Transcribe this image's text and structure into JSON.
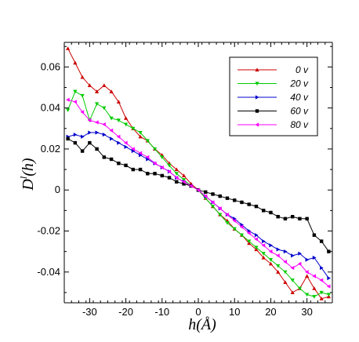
{
  "chart_data": {
    "type": "line",
    "xlabel": "h(Å)",
    "ylabel": "D^l(h)",
    "xlim": [
      -37,
      37
    ],
    "ylim": [
      -0.055,
      0.072
    ],
    "x_ticks": [
      -30,
      -20,
      -10,
      0,
      10,
      20,
      30
    ],
    "x_tick_labels": [
      "-30",
      "-20",
      "-10",
      "0",
      "10",
      "20",
      "30"
    ],
    "y_ticks": [
      -0.04,
      -0.02,
      0,
      0.02,
      0.04,
      0.06
    ],
    "y_tick_labels": [
      "-0.04",
      "-0.02",
      "0",
      "0.02",
      "0.04",
      "0.06"
    ],
    "grid": false,
    "legend_position": "top-right",
    "series": [
      {
        "name": "0 v",
        "color": "#cc0000",
        "marker": "triangle-up",
        "x": [
          -36,
          -34,
          -32,
          -30,
          -28,
          -26,
          -24,
          -22,
          -20,
          -18,
          -16,
          -14,
          -12,
          -10,
          -8,
          -6,
          -4,
          -2,
          0,
          2,
          4,
          6,
          8,
          10,
          12,
          14,
          16,
          18,
          20,
          22,
          24,
          26,
          28,
          30,
          32,
          34,
          36
        ],
        "y": [
          0.069,
          0.062,
          0.055,
          0.051,
          0.048,
          0.051,
          0.048,
          0.043,
          0.035,
          0.03,
          0.026,
          0.024,
          0.02,
          0.017,
          0.013,
          0.01,
          0.007,
          0.003,
          0,
          -0.004,
          -0.008,
          -0.012,
          -0.015,
          -0.019,
          -0.022,
          -0.026,
          -0.029,
          -0.033,
          -0.036,
          -0.04,
          -0.045,
          -0.05,
          -0.048,
          -0.042,
          -0.048,
          -0.053,
          -0.052
        ]
      },
      {
        "name": "20 v",
        "color": "#00cc00",
        "marker": "triangle-down",
        "x": [
          -36,
          -34,
          -32,
          -30,
          -28,
          -26,
          -24,
          -22,
          -20,
          -18,
          -16,
          -14,
          -12,
          -10,
          -8,
          -6,
          -4,
          -2,
          0,
          2,
          4,
          6,
          8,
          10,
          12,
          14,
          16,
          18,
          20,
          22,
          24,
          26,
          28,
          30,
          32,
          34,
          36
        ],
        "y": [
          0.039,
          0.048,
          0.046,
          0.034,
          0.042,
          0.04,
          0.035,
          0.034,
          0.032,
          0.03,
          0.028,
          0.024,
          0.02,
          0.016,
          0.012,
          0.008,
          0.005,
          0.002,
          0,
          -0.004,
          -0.008,
          -0.012,
          -0.016,
          -0.019,
          -0.022,
          -0.025,
          -0.028,
          -0.031,
          -0.034,
          -0.037,
          -0.04,
          -0.044,
          -0.048,
          -0.051,
          -0.052,
          -0.05,
          -0.051
        ]
      },
      {
        "name": "40 v",
        "color": "#0000cc",
        "marker": "triangle-right",
        "x": [
          -36,
          -34,
          -32,
          -30,
          -28,
          -26,
          -24,
          -22,
          -20,
          -18,
          -16,
          -14,
          -12,
          -10,
          -8,
          -6,
          -4,
          -2,
          0,
          2,
          4,
          6,
          8,
          10,
          12,
          14,
          16,
          18,
          20,
          22,
          24,
          26,
          28,
          30,
          32,
          34,
          36
        ],
        "y": [
          0.026,
          0.027,
          0.026,
          0.028,
          0.028,
          0.027,
          0.025,
          0.023,
          0.021,
          0.019,
          0.017,
          0.015,
          0.013,
          0.011,
          0.009,
          0.006,
          0.004,
          0.002,
          0,
          -0.003,
          -0.006,
          -0.009,
          -0.012,
          -0.014,
          -0.017,
          -0.02,
          -0.022,
          -0.025,
          -0.027,
          -0.029,
          -0.03,
          -0.032,
          -0.031,
          -0.034,
          -0.033,
          -0.038,
          -0.043
        ]
      },
      {
        "name": "60 v",
        "color": "#000000",
        "marker": "square",
        "x": [
          -36,
          -34,
          -32,
          -30,
          -28,
          -26,
          -24,
          -22,
          -20,
          -18,
          -16,
          -14,
          -12,
          -10,
          -8,
          -6,
          -4,
          -2,
          0,
          2,
          4,
          6,
          8,
          10,
          12,
          14,
          16,
          18,
          20,
          22,
          24,
          26,
          28,
          30,
          32,
          34,
          36
        ],
        "y": [
          0.025,
          0.023,
          0.019,
          0.023,
          0.02,
          0.016,
          0.015,
          0.013,
          0.012,
          0.01,
          0.01,
          0.008,
          0.008,
          0.007,
          0.006,
          0.004,
          0.003,
          0.002,
          0,
          -0.001,
          -0.002,
          -0.003,
          -0.004,
          -0.005,
          -0.006,
          -0.007,
          -0.008,
          -0.01,
          -0.011,
          -0.013,
          -0.014,
          -0.013,
          -0.014,
          -0.014,
          -0.022,
          -0.025,
          -0.03
        ]
      },
      {
        "name": "80 v",
        "color": "#ff00ff",
        "marker": "triangle-left",
        "x": [
          -36,
          -34,
          -32,
          -30,
          -28,
          -26,
          -24,
          -22,
          -20,
          -18,
          -16,
          -14,
          -12,
          -10,
          -8,
          -6,
          -4,
          -2,
          0,
          2,
          4,
          6,
          8,
          10,
          12,
          14,
          16,
          18,
          20,
          22,
          24,
          26,
          28,
          30,
          32,
          34,
          36
        ],
        "y": [
          0.044,
          0.043,
          0.038,
          0.034,
          0.033,
          0.032,
          0.029,
          0.026,
          0.023,
          0.02,
          0.018,
          0.016,
          0.013,
          0.011,
          0.009,
          0.006,
          0.004,
          0.002,
          0,
          -0.003,
          -0.006,
          -0.009,
          -0.012,
          -0.015,
          -0.018,
          -0.021,
          -0.024,
          -0.027,
          -0.03,
          -0.032,
          -0.035,
          -0.038,
          -0.036,
          -0.04,
          -0.042,
          -0.044,
          -0.047
        ]
      }
    ]
  }
}
